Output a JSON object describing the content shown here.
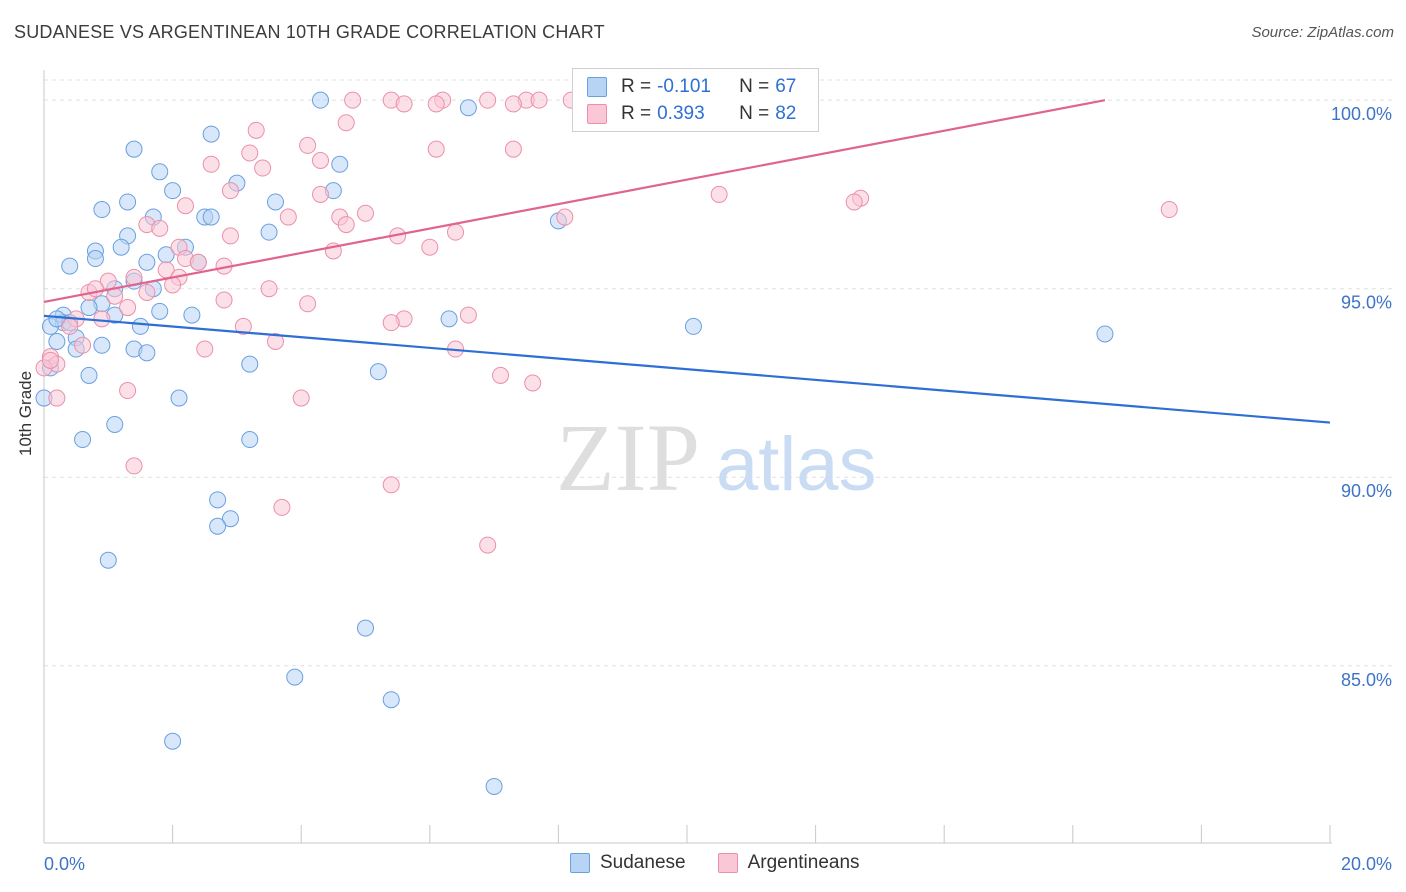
{
  "title": "SUDANESE VS ARGENTINEAN 10TH GRADE CORRELATION CHART",
  "source": "Source: ZipAtlas.com",
  "watermark": {
    "zip": "ZIP",
    "atlas": "atlas"
  },
  "colors": {
    "blue": "#2e6fd4",
    "blue_fill": "#b8d4f4",
    "pink": "#e0648e",
    "pink_fill": "#f9c7d6",
    "grid": "#dde1e6",
    "tick_label": "#3d74c7"
  },
  "legend": {
    "rows": [
      {
        "r_label": "R =",
        "r_value": "-0.101",
        "n_label": "N =",
        "n_value": "67"
      },
      {
        "r_label": "R =",
        "r_value": "0.393",
        "n_label": "N =",
        "n_value": "82"
      }
    ]
  },
  "bottom_legend": [
    "Sudanese",
    "Argentineans"
  ],
  "chart_data": {
    "type": "scatter",
    "title": "SUDANESE VS ARGENTINEAN 10TH GRADE CORRELATION CHART",
    "xlabel": "",
    "ylabel": "10th Grade",
    "xlim": [
      0,
      20
    ],
    "ylim": [
      80.3,
      100.8
    ],
    "x_ticks": [
      0,
      20
    ],
    "x_tick_labels": [
      "0.0%",
      "20.0%"
    ],
    "y_ticks": [
      85,
      90,
      95,
      100
    ],
    "y_tick_labels": [
      "85.0%",
      "90.0%",
      "95.0%",
      "100.0%"
    ],
    "grid": true,
    "legend_position": "top-center",
    "series": [
      {
        "name": "Sudanese",
        "color": "#6aa0e0",
        "trend": {
          "x": [
            0,
            20
          ],
          "y": [
            94.28,
            91.45
          ]
        },
        "points": [
          [
            4.3,
            100.0
          ],
          [
            6.6,
            99.8
          ],
          [
            2.6,
            99.1
          ],
          [
            1.4,
            98.7
          ],
          [
            4.6,
            98.3
          ],
          [
            1.8,
            98.1
          ],
          [
            3.0,
            97.8
          ],
          [
            2.0,
            97.6
          ],
          [
            4.5,
            97.6
          ],
          [
            1.3,
            97.3
          ],
          [
            3.6,
            97.3
          ],
          [
            0.9,
            97.1
          ],
          [
            1.7,
            96.9
          ],
          [
            2.5,
            96.9
          ],
          [
            2.6,
            96.9
          ],
          [
            8.0,
            96.8
          ],
          [
            3.5,
            96.5
          ],
          [
            1.3,
            96.4
          ],
          [
            1.2,
            96.1
          ],
          [
            2.2,
            96.1
          ],
          [
            0.8,
            96.0
          ],
          [
            1.9,
            95.9
          ],
          [
            0.8,
            95.8
          ],
          [
            1.6,
            95.7
          ],
          [
            2.4,
            95.7
          ],
          [
            0.4,
            95.6
          ],
          [
            1.4,
            95.2
          ],
          [
            1.1,
            95.0
          ],
          [
            1.7,
            95.0
          ],
          [
            0.9,
            94.6
          ],
          [
            0.7,
            94.5
          ],
          [
            1.8,
            94.4
          ],
          [
            2.3,
            94.3
          ],
          [
            0.3,
            94.3
          ],
          [
            1.1,
            94.3
          ],
          [
            0.3,
            94.1
          ],
          [
            6.3,
            94.2
          ],
          [
            0.4,
            94.1
          ],
          [
            0.1,
            94.0
          ],
          [
            1.5,
            94.0
          ],
          [
            10.1,
            94.0
          ],
          [
            16.5,
            93.8
          ],
          [
            0.5,
            93.7
          ],
          [
            0.2,
            93.6
          ],
          [
            0.9,
            93.5
          ],
          [
            0.5,
            93.4
          ],
          [
            1.4,
            93.4
          ],
          [
            1.6,
            93.3
          ],
          [
            3.2,
            93.0
          ],
          [
            0.1,
            92.9
          ],
          [
            5.2,
            92.8
          ],
          [
            0.7,
            92.7
          ],
          [
            0.0,
            92.1
          ],
          [
            2.1,
            92.1
          ],
          [
            1.1,
            91.4
          ],
          [
            0.6,
            91.0
          ],
          [
            3.2,
            91.0
          ],
          [
            2.7,
            89.4
          ],
          [
            2.9,
            88.9
          ],
          [
            2.7,
            88.7
          ],
          [
            1.0,
            87.8
          ],
          [
            5.0,
            86.0
          ],
          [
            3.9,
            84.7
          ],
          [
            5.4,
            84.1
          ],
          [
            2.0,
            83.0
          ],
          [
            7.0,
            81.8
          ],
          [
            0.2,
            94.2
          ]
        ]
      },
      {
        "name": "Argentineans",
        "color": "#ec8fab",
        "trend": {
          "x": [
            0,
            16.5
          ],
          "y": [
            94.65,
            100.0
          ]
        },
        "points": [
          [
            4.8,
            100.0
          ],
          [
            5.4,
            100.0
          ],
          [
            6.2,
            100.0
          ],
          [
            6.9,
            100.0
          ],
          [
            7.5,
            100.0
          ],
          [
            7.7,
            100.0
          ],
          [
            8.2,
            100.0
          ],
          [
            9.2,
            100.0
          ],
          [
            9.6,
            100.0
          ],
          [
            5.6,
            99.9
          ],
          [
            6.1,
            99.9
          ],
          [
            7.3,
            99.9
          ],
          [
            8.7,
            99.9
          ],
          [
            4.7,
            99.4
          ],
          [
            3.3,
            99.2
          ],
          [
            4.1,
            98.8
          ],
          [
            3.2,
            98.6
          ],
          [
            6.1,
            98.7
          ],
          [
            7.3,
            98.7
          ],
          [
            2.6,
            98.3
          ],
          [
            3.4,
            98.2
          ],
          [
            4.3,
            98.4
          ],
          [
            2.9,
            97.6
          ],
          [
            4.3,
            97.5
          ],
          [
            10.5,
            97.5
          ],
          [
            12.7,
            97.4
          ],
          [
            12.6,
            97.3
          ],
          [
            2.2,
            97.2
          ],
          [
            17.5,
            97.1
          ],
          [
            3.8,
            96.9
          ],
          [
            4.6,
            96.9
          ],
          [
            8.1,
            96.9
          ],
          [
            1.6,
            96.7
          ],
          [
            4.7,
            96.7
          ],
          [
            6.4,
            96.5
          ],
          [
            2.9,
            96.4
          ],
          [
            5.5,
            96.4
          ],
          [
            6.0,
            96.1
          ],
          [
            2.1,
            96.1
          ],
          [
            4.5,
            96.0
          ],
          [
            2.2,
            95.8
          ],
          [
            2.4,
            95.7
          ],
          [
            2.8,
            95.6
          ],
          [
            1.9,
            95.5
          ],
          [
            2.1,
            95.3
          ],
          [
            1.0,
            95.2
          ],
          [
            1.4,
            95.3
          ],
          [
            3.5,
            95.0
          ],
          [
            0.7,
            94.9
          ],
          [
            1.6,
            94.9
          ],
          [
            2.8,
            94.7
          ],
          [
            4.1,
            94.6
          ],
          [
            1.3,
            94.5
          ],
          [
            0.5,
            94.2
          ],
          [
            0.9,
            94.2
          ],
          [
            5.6,
            94.2
          ],
          [
            6.6,
            94.3
          ],
          [
            5.4,
            94.1
          ],
          [
            0.4,
            94.0
          ],
          [
            3.1,
            94.0
          ],
          [
            0.6,
            93.5
          ],
          [
            3.6,
            93.6
          ],
          [
            2.5,
            93.4
          ],
          [
            6.4,
            93.4
          ],
          [
            0.1,
            93.2
          ],
          [
            0.2,
            93.0
          ],
          [
            0.0,
            92.9
          ],
          [
            7.1,
            92.7
          ],
          [
            7.6,
            92.5
          ],
          [
            1.3,
            92.3
          ],
          [
            4.0,
            92.1
          ],
          [
            0.2,
            92.1
          ],
          [
            1.4,
            90.3
          ],
          [
            5.4,
            89.8
          ],
          [
            3.7,
            89.2
          ],
          [
            6.9,
            88.2
          ],
          [
            1.1,
            94.8
          ],
          [
            2.0,
            95.1
          ],
          [
            1.8,
            96.6
          ],
          [
            0.8,
            95.0
          ],
          [
            5.0,
            97.0
          ],
          [
            0.1,
            93.1
          ]
        ]
      }
    ]
  }
}
